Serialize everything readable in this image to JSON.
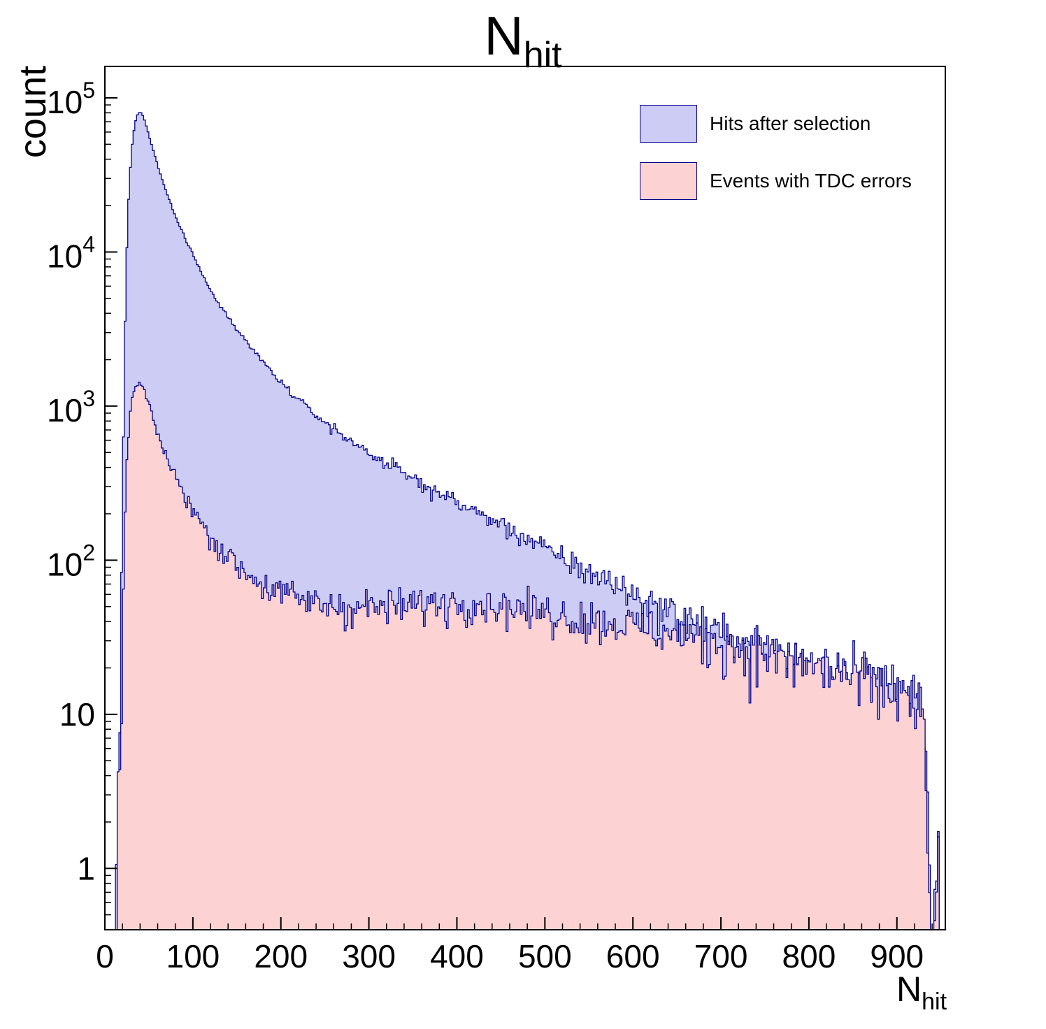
{
  "title": {
    "main": "N",
    "sub": "hit"
  },
  "axes": {
    "y_label": "count",
    "x_label_main": "N",
    "x_label_sub": "hit"
  },
  "legend": {
    "items": [
      {
        "label": "Hits after selection",
        "fill": "#ccccf4",
        "edge": "#00008c"
      },
      {
        "label": "Events with TDC errors",
        "fill": "#fcd2d2",
        "edge": "#00008c"
      }
    ]
  },
  "chart_data": {
    "type": "area",
    "subtype": "step-histogram-log-y",
    "title": "N_hit",
    "xlabel": "N_hit",
    "ylabel": "count",
    "y_scale": "log",
    "grid": false,
    "legend_position": "top-right",
    "x_range": [
      0,
      955
    ],
    "y_log_range": [
      0.4,
      160000
    ],
    "x_ticks": [
      0,
      100,
      200,
      300,
      400,
      500,
      600,
      700,
      800,
      900
    ],
    "x_minor_step": 20,
    "y_ticks": [
      1,
      10,
      100,
      1000,
      10000,
      100000
    ],
    "bin_width": 2,
    "series": [
      {
        "name": "Hits after selection",
        "fill": "#ccccf4",
        "edge": "#00008c",
        "peak": {
          "x": 40,
          "y": 82000
        },
        "anchors": [
          [
            12,
            0
          ],
          [
            14,
            1
          ],
          [
            16,
            3
          ],
          [
            18,
            25
          ],
          [
            20,
            250
          ],
          [
            22,
            1800
          ],
          [
            24,
            7000
          ],
          [
            26,
            16000
          ],
          [
            28,
            30000
          ],
          [
            31,
            50000
          ],
          [
            34,
            68000
          ],
          [
            37,
            78000
          ],
          [
            40,
            82000
          ],
          [
            44,
            75000
          ],
          [
            48,
            63000
          ],
          [
            52,
            52000
          ],
          [
            56,
            43500
          ],
          [
            60,
            36500
          ],
          [
            65,
            29500
          ],
          [
            70,
            24500
          ],
          [
            75,
            20500
          ],
          [
            80,
            17200
          ],
          [
            85,
            14800
          ],
          [
            90,
            12700
          ],
          [
            95,
            11000
          ],
          [
            100,
            9600
          ],
          [
            110,
            7300
          ],
          [
            120,
            5700
          ],
          [
            130,
            4600
          ],
          [
            140,
            3800
          ],
          [
            150,
            3150
          ],
          [
            160,
            2650
          ],
          [
            170,
            2250
          ],
          [
            180,
            1950
          ],
          [
            190,
            1650
          ],
          [
            200,
            1430
          ],
          [
            220,
            1100
          ],
          [
            240,
            870
          ],
          [
            260,
            710
          ],
          [
            280,
            590
          ],
          [
            300,
            500
          ],
          [
            320,
            425
          ],
          [
            340,
            365
          ],
          [
            360,
            315
          ],
          [
            380,
            272
          ],
          [
            400,
            238
          ],
          [
            420,
            208
          ],
          [
            440,
            182
          ],
          [
            460,
            160
          ],
          [
            480,
            138
          ],
          [
            500,
            118
          ],
          [
            520,
            102
          ],
          [
            540,
            90
          ],
          [
            560,
            79
          ],
          [
            580,
            70
          ],
          [
            600,
            60
          ],
          [
            620,
            53
          ],
          [
            640,
            47
          ],
          [
            660,
            42
          ],
          [
            680,
            37
          ],
          [
            700,
            33
          ],
          [
            720,
            30
          ],
          [
            740,
            28
          ],
          [
            760,
            25
          ],
          [
            780,
            23
          ],
          [
            800,
            22
          ],
          [
            820,
            20
          ],
          [
            840,
            19
          ],
          [
            860,
            17
          ],
          [
            880,
            16
          ],
          [
            900,
            15
          ],
          [
            912,
            13
          ],
          [
            922,
            11
          ],
          [
            928,
            9
          ],
          [
            932,
            5
          ],
          [
            934,
            2
          ],
          [
            936,
            1
          ],
          [
            938,
            0
          ],
          [
            942,
            0
          ],
          [
            944,
            1
          ],
          [
            946,
            1
          ],
          [
            948,
            0
          ]
        ]
      },
      {
        "name": "Events with TDC errors",
        "fill": "#fcd2d2",
        "edge": "#00008c",
        "peak": {
          "x": 40,
          "y": 1400
        },
        "anchors": [
          [
            7,
            0
          ],
          [
            9,
            1
          ],
          [
            11,
            0
          ],
          [
            12,
            0
          ],
          [
            14,
            1
          ],
          [
            16,
            2
          ],
          [
            18,
            6
          ],
          [
            20,
            30
          ],
          [
            22,
            120
          ],
          [
            24,
            320
          ],
          [
            26,
            560
          ],
          [
            28,
            830
          ],
          [
            31,
            1100
          ],
          [
            34,
            1300
          ],
          [
            37,
            1380
          ],
          [
            40,
            1400
          ],
          [
            44,
            1290
          ],
          [
            48,
            1100
          ],
          [
            52,
            920
          ],
          [
            56,
            780
          ],
          [
            60,
            660
          ],
          [
            65,
            550
          ],
          [
            70,
            465
          ],
          [
            75,
            400
          ],
          [
            80,
            348
          ],
          [
            85,
            305
          ],
          [
            90,
            270
          ],
          [
            95,
            240
          ],
          [
            100,
            215
          ],
          [
            110,
            172
          ],
          [
            120,
            142
          ],
          [
            130,
            121
          ],
          [
            140,
            106
          ],
          [
            150,
            94
          ],
          [
            160,
            84
          ],
          [
            170,
            76
          ],
          [
            180,
            70
          ],
          [
            190,
            65
          ],
          [
            200,
            61
          ],
          [
            220,
            56
          ],
          [
            240,
            53
          ],
          [
            260,
            51
          ],
          [
            280,
            50
          ],
          [
            300,
            50
          ],
          [
            320,
            50
          ],
          [
            340,
            51
          ],
          [
            360,
            52
          ],
          [
            380,
            53
          ],
          [
            400,
            54
          ],
          [
            420,
            53
          ],
          [
            440,
            52
          ],
          [
            460,
            50
          ],
          [
            480,
            48
          ],
          [
            500,
            46
          ],
          [
            520,
            44
          ],
          [
            540,
            42
          ],
          [
            560,
            41
          ],
          [
            580,
            39
          ],
          [
            600,
            38
          ],
          [
            620,
            36
          ],
          [
            640,
            34
          ],
          [
            660,
            32
          ],
          [
            680,
            30
          ],
          [
            700,
            29
          ],
          [
            720,
            27
          ],
          [
            740,
            26
          ],
          [
            760,
            24
          ],
          [
            780,
            22
          ],
          [
            800,
            21
          ],
          [
            820,
            20
          ],
          [
            840,
            18
          ],
          [
            860,
            17
          ],
          [
            880,
            15
          ],
          [
            900,
            14
          ],
          [
            912,
            13
          ],
          [
            922,
            11
          ],
          [
            928,
            9
          ],
          [
            932,
            5
          ],
          [
            934,
            2
          ],
          [
            936,
            1
          ],
          [
            938,
            0
          ],
          [
            942,
            0
          ],
          [
            944,
            1
          ],
          [
            946,
            1
          ],
          [
            948,
            0
          ]
        ]
      }
    ]
  }
}
